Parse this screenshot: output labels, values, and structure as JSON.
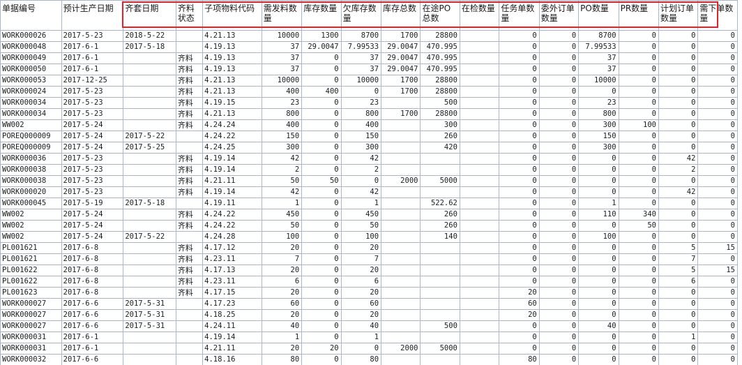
{
  "columns": [
    "单据编号",
    "预计生产日期",
    "齐套日期",
    "齐料状态",
    "子项物料代码",
    "需发料数量",
    "库存数量",
    "欠库存数量",
    "库存总数",
    "在途PO总数",
    "在检数量",
    "任务单数量",
    "委外订单数量",
    "PO数量",
    "PR数量",
    "计划订单数量",
    "需下单数量"
  ],
  "rows": [
    [
      "WORK000026",
      "2017-5-23",
      "2018-5-22",
      "",
      "4.21.13",
      "10000",
      "1300",
      "8700",
      "1700",
      "28800",
      "",
      "0",
      "0",
      "8700",
      "0",
      "0",
      "0"
    ],
    [
      "WORK000048",
      "2017-6-1",
      "2017-5-18",
      "",
      "4.19.13",
      "37",
      "29.0047",
      "7.99533",
      "29.0047",
      "470.995",
      "",
      "0",
      "0",
      "7.99533",
      "0",
      "0",
      "0"
    ],
    [
      "WORK000049",
      "2017-6-1",
      "",
      "齐料",
      "4.19.13",
      "37",
      "0",
      "37",
      "29.0047",
      "470.995",
      "",
      "0",
      "0",
      "37",
      "0",
      "0",
      "0"
    ],
    [
      "WORK000050",
      "2017-6-1",
      "",
      "齐料",
      "4.19.13",
      "37",
      "0",
      "37",
      "29.0047",
      "470.995",
      "",
      "0",
      "0",
      "37",
      "0",
      "0",
      "0"
    ],
    [
      "WORK000053",
      "2017-12-25",
      "",
      "齐料",
      "4.21.13",
      "10000",
      "0",
      "10000",
      "1700",
      "28800",
      "",
      "0",
      "0",
      "10000",
      "0",
      "0",
      "0"
    ],
    [
      "WORK000024",
      "2017-5-23",
      "",
      "齐料",
      "4.21.13",
      "400",
      "400",
      "0",
      "1700",
      "28800",
      "",
      "0",
      "0",
      "0",
      "0",
      "0",
      "0"
    ],
    [
      "WORK000034",
      "2017-5-23",
      "",
      "齐料",
      "4.19.15",
      "23",
      "0",
      "23",
      "",
      "500",
      "",
      "0",
      "0",
      "23",
      "0",
      "0",
      "0"
    ],
    [
      "WORK000034",
      "2017-5-23",
      "",
      "齐料",
      "4.21.13",
      "800",
      "0",
      "800",
      "1700",
      "28800",
      "",
      "0",
      "0",
      "800",
      "0",
      "0",
      "0"
    ],
    [
      "WW002",
      "2017-5-24",
      "",
      "齐料",
      "4.24.24",
      "400",
      "0",
      "400",
      "",
      "300",
      "",
      "0",
      "0",
      "300",
      "100",
      "0",
      "0"
    ],
    [
      "POREQ000009",
      "2017-5-24",
      "2017-5-22",
      "",
      "4.24.22",
      "150",
      "0",
      "150",
      "",
      "260",
      "",
      "0",
      "0",
      "150",
      "0",
      "0",
      "0"
    ],
    [
      "POREQ000009",
      "2017-5-24",
      "2017-5-25",
      "",
      "4.24.25",
      "300",
      "0",
      "300",
      "",
      "420",
      "",
      "0",
      "0",
      "300",
      "0",
      "0",
      "0"
    ],
    [
      "WORK000036",
      "2017-5-23",
      "",
      "齐料",
      "4.19.14",
      "42",
      "0",
      "42",
      "",
      "",
      "",
      "0",
      "0",
      "0",
      "0",
      "42",
      "0"
    ],
    [
      "WORK000038",
      "2017-5-23",
      "",
      "齐料",
      "4.19.14",
      "2",
      "0",
      "2",
      "",
      "",
      "",
      "0",
      "0",
      "0",
      "0",
      "2",
      "0"
    ],
    [
      "WORK000038",
      "2017-5-23",
      "",
      "齐料",
      "4.21.11",
      "50",
      "50",
      "0",
      "2000",
      "5000",
      "",
      "0",
      "0",
      "0",
      "0",
      "0",
      "0"
    ],
    [
      "WORK000020",
      "2017-5-23",
      "",
      "齐料",
      "4.19.14",
      "42",
      "0",
      "42",
      "",
      "",
      "",
      "0",
      "0",
      "0",
      "0",
      "42",
      "0"
    ],
    [
      "WORK000045",
      "2017-5-19",
      "2017-5-18",
      "",
      "4.19.11",
      "1",
      "0",
      "1",
      "",
      "522.62",
      "",
      "0",
      "0",
      "1",
      "0",
      "0",
      "0"
    ],
    [
      "WW002",
      "2017-5-24",
      "",
      "齐料",
      "4.24.22",
      "450",
      "0",
      "450",
      "",
      "260",
      "",
      "0",
      "0",
      "110",
      "340",
      "0",
      "0"
    ],
    [
      "WW002",
      "2017-5-24",
      "",
      "齐料",
      "4.24.22",
      "50",
      "0",
      "50",
      "",
      "260",
      "",
      "0",
      "0",
      "0",
      "50",
      "0",
      "0"
    ],
    [
      "WW002",
      "2017-5-24",
      "2017-5-22",
      "",
      "4.24.28",
      "100",
      "0",
      "100",
      "",
      "140",
      "",
      "0",
      "0",
      "100",
      "0",
      "0",
      "0"
    ],
    [
      "PL001621",
      "2017-6-8",
      "",
      "齐料",
      "4.17.12",
      "20",
      "0",
      "20",
      "",
      "",
      "",
      "0",
      "0",
      "0",
      "0",
      "5",
      "15"
    ],
    [
      "PL001621",
      "2017-6-8",
      "",
      "齐料",
      "4.23.11",
      "7",
      "0",
      "7",
      "",
      "",
      "",
      "0",
      "0",
      "0",
      "0",
      "7",
      "0"
    ],
    [
      "PL001622",
      "2017-6-8",
      "",
      "齐料",
      "4.17.13",
      "20",
      "0",
      "20",
      "",
      "",
      "",
      "0",
      "0",
      "0",
      "0",
      "5",
      "15"
    ],
    [
      "PL001622",
      "2017-6-8",
      "",
      "齐料",
      "4.23.11",
      "6",
      "0",
      "6",
      "",
      "",
      "",
      "0",
      "0",
      "0",
      "0",
      "6",
      "0"
    ],
    [
      "PL001623",
      "2017-6-8",
      "",
      "齐料",
      "4.17.15",
      "20",
      "0",
      "20",
      "",
      "",
      "",
      "20",
      "0",
      "0",
      "0",
      "0",
      "0"
    ],
    [
      "WORK000027",
      "2017-6-6",
      "2017-5-31",
      "",
      "4.17.23",
      "60",
      "0",
      "60",
      "",
      "",
      "",
      "60",
      "0",
      "0",
      "0",
      "0",
      "0"
    ],
    [
      "WORK000027",
      "2017-6-6",
      "2017-5-31",
      "",
      "4.18.25",
      "20",
      "0",
      "20",
      "",
      "",
      "",
      "20",
      "0",
      "0",
      "0",
      "0",
      "0"
    ],
    [
      "WORK000027",
      "2017-6-6",
      "2017-5-31",
      "",
      "4.24.11",
      "40",
      "0",
      "40",
      "",
      "500",
      "",
      "0",
      "0",
      "40",
      "0",
      "0",
      "0"
    ],
    [
      "WORK000031",
      "2017-6-1",
      "",
      "",
      "4.19.14",
      "1",
      "0",
      "1",
      "",
      "",
      "",
      "0",
      "0",
      "0",
      "0",
      "1",
      "0"
    ],
    [
      "WORK000031",
      "2017-6-1",
      "",
      "",
      "4.21.11",
      "20",
      "20",
      "0",
      "2000",
      "5000",
      "",
      "0",
      "0",
      "0",
      "0",
      "0",
      "0"
    ],
    [
      "WORK000032",
      "2017-6-6",
      "",
      "",
      "4.18.16",
      "80",
      "0",
      "80",
      "",
      "",
      "",
      "80",
      "0",
      "0",
      "0",
      "0",
      "0"
    ]
  ],
  "highlight_color": "#e8202a"
}
